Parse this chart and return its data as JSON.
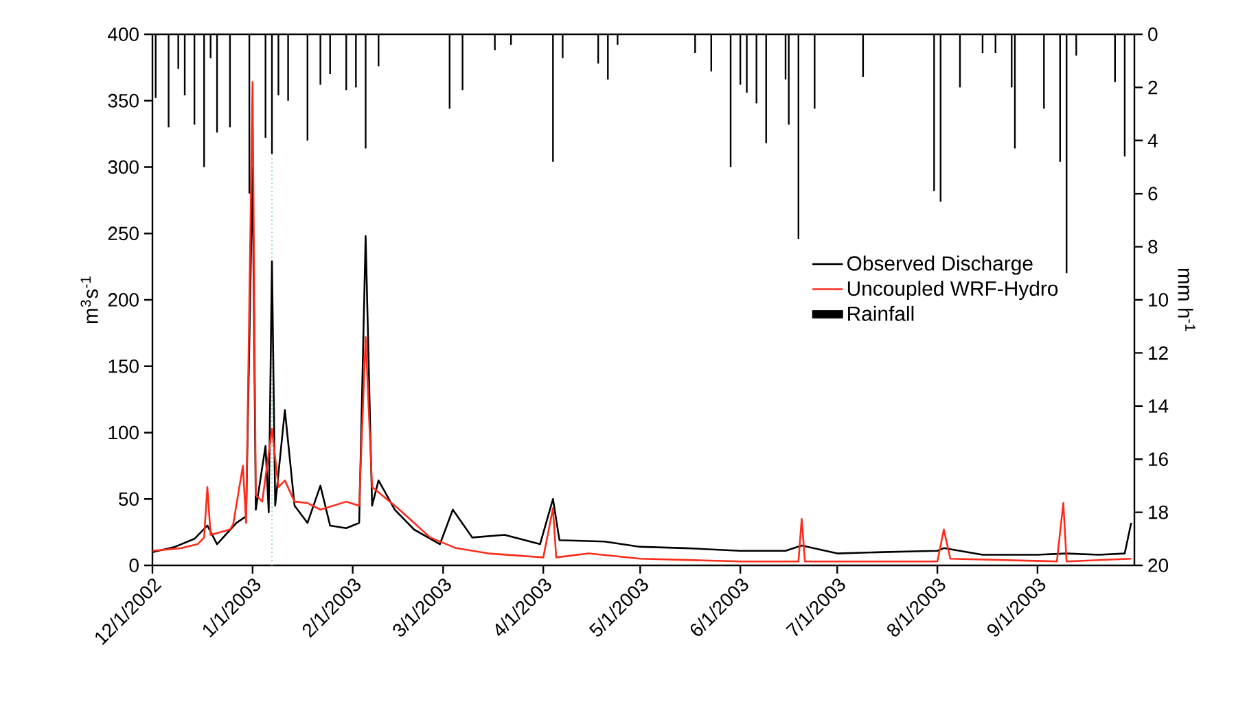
{
  "chart_data": {
    "type": "line",
    "ylabel": "m$^{3}$s$^{-1}$",
    "y2label": "mm h$^{-1}$",
    "xlim": [
      "2002-12-01",
      "2003-10-01"
    ],
    "xticks": [
      {
        "value": "2002-12-01",
        "label": "12/1/2002"
      },
      {
        "value": "2003-01-01",
        "label": "1/1/2003"
      },
      {
        "value": "2003-02-01",
        "label": "2/1/2003"
      },
      {
        "value": "2003-03-01",
        "label": "3/1/2003"
      },
      {
        "value": "2003-04-01",
        "label": "4/1/2003"
      },
      {
        "value": "2003-05-01",
        "label": "5/1/2003"
      },
      {
        "value": "2003-06-01",
        "label": "6/1/2003"
      },
      {
        "value": "2003-07-01",
        "label": "7/1/2003"
      },
      {
        "value": "2003-08-01",
        "label": "8/1/2003"
      },
      {
        "value": "2003-09-01",
        "label": "9/1/2003"
      }
    ],
    "ylim": [
      0,
      400
    ],
    "yticks": [
      0,
      50,
      100,
      150,
      200,
      250,
      300,
      350,
      400
    ],
    "y2lim": [
      20,
      0
    ],
    "y2ticks": [
      0,
      2,
      4,
      6,
      8,
      10,
      12,
      14,
      16,
      18,
      20
    ],
    "legend": "right",
    "ref_lines": [
      {
        "axis": "x",
        "value": "2003-01-07",
        "color": "#9fd3c7",
        "line_style": "dotted"
      }
    ],
    "series": [
      {
        "name": "Observed Discharge",
        "color": "#000000",
        "x": [
          "2002-12-01",
          "2002-12-08",
          "2002-12-14",
          "2002-12-18",
          "2002-12-21",
          "2002-12-27",
          "2002-12-30",
          "2003-01-01",
          "2003-01-02",
          "2003-01-05",
          "2003-01-06",
          "2003-01-07",
          "2003-01-08",
          "2003-01-11",
          "2003-01-14",
          "2003-01-18",
          "2003-01-22",
          "2003-01-25",
          "2003-01-30",
          "2003-02-03",
          "2003-02-05",
          "2003-02-07",
          "2003-02-09",
          "2003-02-14",
          "2003-02-20",
          "2003-02-28",
          "2003-03-04",
          "2003-03-10",
          "2003-03-20",
          "2003-03-31",
          "2003-04-04",
          "2003-04-06",
          "2003-04-20",
          "2003-05-01",
          "2003-05-15",
          "2003-06-01",
          "2003-06-15",
          "2003-06-20",
          "2003-07-01",
          "2003-07-15",
          "2003-08-01",
          "2003-08-03",
          "2003-08-15",
          "2003-09-01",
          "2003-09-10",
          "2003-09-20",
          "2003-09-28",
          "2003-09-30"
        ],
        "values": [
          10,
          14,
          20,
          30,
          16,
          32,
          37,
          300,
          42,
          90,
          40,
          229,
          45,
          117,
          45,
          32,
          60,
          30,
          28,
          32,
          248,
          45,
          64,
          42,
          27,
          16,
          42,
          21,
          23,
          16,
          50,
          19,
          18,
          14,
          13,
          11,
          11,
          15,
          9,
          10,
          11,
          13,
          8,
          8,
          9,
          8,
          9,
          32
        ]
      },
      {
        "name": "Uncoupled WRF-Hydro",
        "color": "#ff2a1a",
        "x": [
          "2002-12-01",
          "2002-12-10",
          "2002-12-15",
          "2002-12-17",
          "2002-12-18",
          "2002-12-19",
          "2002-12-25",
          "2002-12-26",
          "2002-12-29",
          "2002-12-30",
          "2003-01-01",
          "2003-01-02",
          "2003-01-04",
          "2003-01-07",
          "2003-01-09",
          "2003-01-11",
          "2003-01-14",
          "2003-01-18",
          "2003-01-22",
          "2003-01-30",
          "2003-02-03",
          "2003-02-05",
          "2003-02-07",
          "2003-02-15",
          "2003-02-25",
          "2003-03-05",
          "2003-03-15",
          "2003-04-01",
          "2003-04-04",
          "2003-04-05",
          "2003-04-15",
          "2003-05-01",
          "2003-06-01",
          "2003-06-19",
          "2003-06-20",
          "2003-06-21",
          "2003-08-01",
          "2003-08-03",
          "2003-08-05",
          "2003-09-07",
          "2003-09-09",
          "2003-09-10",
          "2003-09-30"
        ],
        "values": [
          11,
          13,
          16,
          21,
          59,
          23,
          27,
          31,
          75,
          32,
          364,
          53,
          48,
          103,
          59,
          64,
          48,
          47,
          42,
          48,
          45,
          172,
          59,
          43,
          21,
          13,
          9,
          6,
          43,
          6,
          9,
          5,
          3,
          3,
          35,
          3,
          3,
          27,
          5,
          3,
          47,
          3,
          5
        ]
      },
      {
        "name": "Rainfall",
        "type": "bar",
        "axis": "y2",
        "color": "#000000",
        "x": [
          "2002-12-02",
          "2002-12-06",
          "2002-12-09",
          "2002-12-11",
          "2002-12-14",
          "2002-12-17",
          "2002-12-19",
          "2002-12-21",
          "2002-12-25",
          "2002-12-31",
          "2003-01-05",
          "2003-01-07",
          "2003-01-09",
          "2003-01-12",
          "2003-01-18",
          "2003-01-22",
          "2003-01-25",
          "2003-01-30",
          "2003-02-02",
          "2003-02-05",
          "2003-02-09",
          "2003-03-03",
          "2003-03-07",
          "2003-03-17",
          "2003-03-22",
          "2003-04-04",
          "2003-04-07",
          "2003-04-18",
          "2003-04-21",
          "2003-04-24",
          "2003-05-18",
          "2003-05-23",
          "2003-05-29",
          "2003-06-01",
          "2003-06-03",
          "2003-06-06",
          "2003-06-09",
          "2003-06-15",
          "2003-06-16",
          "2003-06-19",
          "2003-06-24",
          "2003-07-09",
          "2003-07-31",
          "2003-08-02",
          "2003-08-08",
          "2003-08-15",
          "2003-08-19",
          "2003-08-24",
          "2003-08-25",
          "2003-09-03",
          "2003-09-08",
          "2003-09-10",
          "2003-09-13",
          "2003-09-25",
          "2003-09-28"
        ],
        "values": [
          2.4,
          3.5,
          1.3,
          2.3,
          3.4,
          5.0,
          0.9,
          3.7,
          3.5,
          6.0,
          3.9,
          4.5,
          2.3,
          2.5,
          4.0,
          1.9,
          1.5,
          2.1,
          2.0,
          4.3,
          1.2,
          2.8,
          2.1,
          0.6,
          0.4,
          4.8,
          0.9,
          1.1,
          1.7,
          0.4,
          0.7,
          1.4,
          5.0,
          1.9,
          2.2,
          2.6,
          4.1,
          1.7,
          3.4,
          7.7,
          2.8,
          1.6,
          5.9,
          6.3,
          2.0,
          0.7,
          0.7,
          2.0,
          4.3,
          2.8,
          4.8,
          9.0,
          0.8,
          1.8,
          4.6
        ]
      }
    ]
  }
}
